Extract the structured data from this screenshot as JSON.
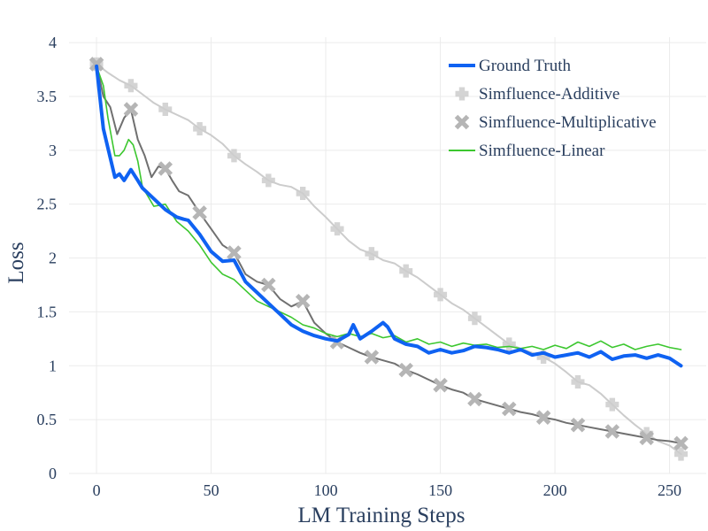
{
  "chart_data": {
    "type": "line",
    "title": "",
    "xlabel": "LM Training Steps",
    "ylabel": "Loss",
    "xlim": [
      -12,
      266
    ],
    "ylim": [
      0,
      4.05
    ],
    "xticks": [
      0,
      50,
      100,
      150,
      200,
      250
    ],
    "yticks": [
      0,
      0.5,
      1,
      1.5,
      2,
      2.5,
      3,
      3.5,
      4
    ],
    "ytick_labels": [
      "0",
      "0.5",
      "1",
      "1.5",
      "2",
      "2.5",
      "3",
      "3.5",
      "4"
    ],
    "grid": true,
    "legend_position": "top-right",
    "series": [
      {
        "name": "Ground Truth",
        "color": "#0f62f2",
        "style": "thick-line",
        "x": [
          0,
          3,
          5,
          8,
          10,
          12,
          15,
          18,
          20,
          25,
          30,
          35,
          38,
          40,
          45,
          50,
          55,
          60,
          65,
          70,
          75,
          80,
          85,
          90,
          95,
          100,
          105,
          110,
          112,
          115,
          120,
          125,
          127,
          130,
          135,
          140,
          145,
          150,
          155,
          160,
          165,
          170,
          175,
          180,
          185,
          190,
          195,
          200,
          205,
          210,
          215,
          220,
          225,
          230,
          235,
          240,
          245,
          250,
          255
        ],
        "y": [
          3.78,
          3.2,
          3.02,
          2.75,
          2.78,
          2.72,
          2.82,
          2.72,
          2.65,
          2.55,
          2.45,
          2.38,
          2.36,
          2.35,
          2.22,
          2.06,
          1.97,
          1.98,
          1.78,
          1.68,
          1.58,
          1.48,
          1.38,
          1.32,
          1.28,
          1.25,
          1.23,
          1.29,
          1.38,
          1.25,
          1.32,
          1.4,
          1.36,
          1.25,
          1.2,
          1.18,
          1.12,
          1.15,
          1.12,
          1.14,
          1.18,
          1.17,
          1.15,
          1.12,
          1.15,
          1.1,
          1.12,
          1.08,
          1.1,
          1.12,
          1.08,
          1.13,
          1.06,
          1.09,
          1.1,
          1.07,
          1.1,
          1.07,
          1.0
        ]
      },
      {
        "name": "Simfluence-Additive",
        "color": "#cccccc",
        "marker": "plus",
        "x": [
          0,
          5,
          10,
          15,
          20,
          25,
          30,
          35,
          40,
          45,
          50,
          55,
          60,
          65,
          70,
          75,
          80,
          85,
          90,
          95,
          100,
          105,
          110,
          115,
          120,
          125,
          130,
          135,
          140,
          145,
          150,
          155,
          160,
          165,
          170,
          175,
          180,
          185,
          190,
          195,
          200,
          205,
          210,
          215,
          220,
          225,
          230,
          235,
          240,
          245,
          250,
          255
        ],
        "y": [
          3.8,
          3.72,
          3.65,
          3.6,
          3.52,
          3.44,
          3.38,
          3.33,
          3.28,
          3.2,
          3.14,
          3.06,
          2.95,
          2.87,
          2.8,
          2.72,
          2.68,
          2.66,
          2.6,
          2.48,
          2.38,
          2.27,
          2.16,
          2.08,
          2.04,
          1.98,
          1.95,
          1.88,
          1.82,
          1.74,
          1.66,
          1.58,
          1.52,
          1.44,
          1.36,
          1.28,
          1.2,
          1.16,
          1.12,
          1.08,
          1.02,
          0.94,
          0.85,
          0.82,
          0.74,
          0.64,
          0.54,
          0.45,
          0.37,
          0.3,
          0.26,
          0.18
        ]
      },
      {
        "name": "Simfluence-Multiplicative",
        "color": "#707070",
        "marker_color": "#b5b5b5",
        "marker": "x",
        "x": [
          0,
          3,
          6,
          9,
          12,
          15,
          18,
          21,
          24,
          27,
          30,
          33,
          36,
          40,
          45,
          50,
          55,
          60,
          65,
          70,
          75,
          80,
          85,
          90,
          95,
          100,
          105,
          110,
          115,
          120,
          125,
          130,
          135,
          140,
          145,
          150,
          155,
          160,
          165,
          170,
          175,
          180,
          185,
          190,
          195,
          200,
          205,
          210,
          215,
          220,
          225,
          230,
          235,
          240,
          245,
          250,
          255
        ],
        "y": [
          3.8,
          3.5,
          3.4,
          3.15,
          3.3,
          3.38,
          3.1,
          2.95,
          2.75,
          2.85,
          2.83,
          2.72,
          2.62,
          2.58,
          2.42,
          2.27,
          2.12,
          2.05,
          1.85,
          1.78,
          1.75,
          1.62,
          1.55,
          1.6,
          1.4,
          1.3,
          1.22,
          1.17,
          1.12,
          1.08,
          1.05,
          1.02,
          0.96,
          0.92,
          0.87,
          0.82,
          0.78,
          0.75,
          0.69,
          0.66,
          0.63,
          0.6,
          0.57,
          0.55,
          0.52,
          0.5,
          0.47,
          0.45,
          0.43,
          0.41,
          0.39,
          0.37,
          0.35,
          0.33,
          0.31,
          0.3,
          0.28
        ]
      },
      {
        "name": "Simfluence-Linear",
        "color": "#3cc72f",
        "style": "thin-line",
        "x": [
          0,
          3,
          5,
          8,
          10,
          12,
          14,
          16,
          18,
          20,
          25,
          30,
          35,
          40,
          45,
          50,
          55,
          60,
          65,
          70,
          75,
          80,
          85,
          90,
          95,
          100,
          105,
          110,
          115,
          120,
          125,
          130,
          135,
          140,
          145,
          150,
          155,
          160,
          165,
          170,
          175,
          180,
          185,
          190,
          195,
          200,
          205,
          210,
          215,
          220,
          225,
          230,
          235,
          240,
          245,
          250,
          255
        ],
        "y": [
          3.78,
          3.6,
          3.3,
          2.95,
          2.95,
          3.0,
          3.1,
          3.05,
          2.9,
          2.66,
          2.48,
          2.5,
          2.34,
          2.25,
          2.12,
          1.96,
          1.85,
          1.8,
          1.7,
          1.6,
          1.55,
          1.5,
          1.45,
          1.38,
          1.35,
          1.3,
          1.27,
          1.3,
          1.27,
          1.3,
          1.26,
          1.28,
          1.22,
          1.25,
          1.2,
          1.22,
          1.18,
          1.21,
          1.19,
          1.2,
          1.17,
          1.18,
          1.16,
          1.18,
          1.15,
          1.19,
          1.16,
          1.22,
          1.18,
          1.23,
          1.17,
          1.2,
          1.15,
          1.18,
          1.2,
          1.17,
          1.15
        ]
      }
    ]
  }
}
